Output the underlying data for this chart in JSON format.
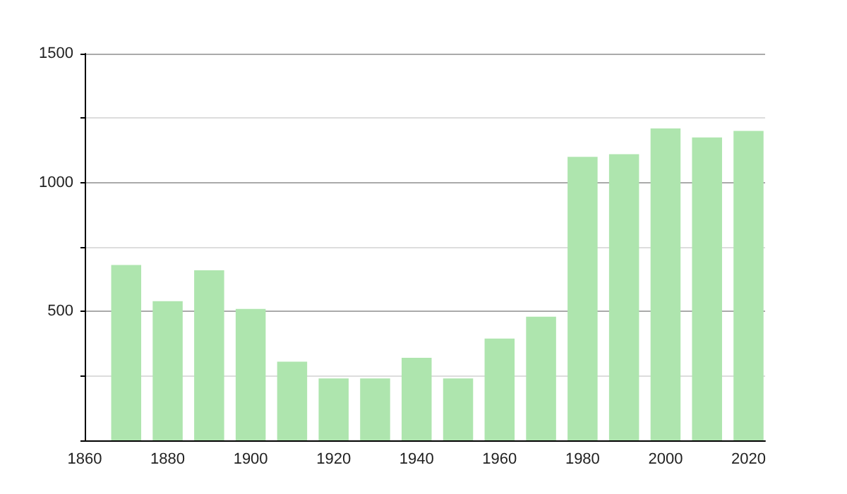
{
  "chart_data": {
    "type": "bar",
    "x": [
      1870,
      1880,
      1890,
      1900,
      1910,
      1920,
      1930,
      1940,
      1950,
      1960,
      1970,
      1980,
      1990,
      2000,
      2010,
      2020
    ],
    "values": [
      680,
      540,
      660,
      510,
      305,
      240,
      240,
      320,
      240,
      395,
      480,
      1100,
      1110,
      1210,
      1175,
      1200
    ],
    "color": "#aee5ae",
    "xlim": [
      1860,
      2024
    ],
    "xticks": [
      1860,
      1880,
      1900,
      1920,
      1940,
      1960,
      1980,
      2000,
      2020
    ],
    "ylim": [
      0,
      1500
    ],
    "yticks": [
      {
        "value": 0,
        "label": null
      },
      {
        "value": 250,
        "label": null
      },
      500,
      {
        "value": 750,
        "label": null
      },
      1000,
      {
        "value": 1250,
        "label": null
      },
      1500
    ],
    "grid": "y"
  }
}
